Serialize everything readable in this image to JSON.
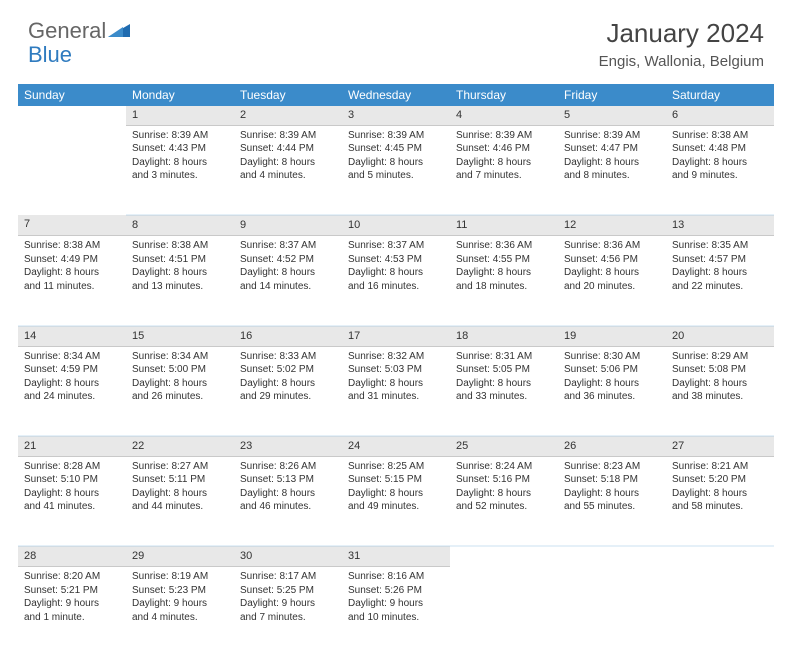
{
  "brand": {
    "part1": "General",
    "part2": "Blue"
  },
  "title": {
    "month": "January 2024",
    "location": "Engis, Wallonia, Belgium"
  },
  "colors": {
    "header_bg": "#3b8bca",
    "header_text": "#ffffff",
    "daynum_bg": "#e8e8e8",
    "text": "#333333",
    "logo_accent": "#2f7bbf"
  },
  "weekdays": [
    "Sunday",
    "Monday",
    "Tuesday",
    "Wednesday",
    "Thursday",
    "Friday",
    "Saturday"
  ],
  "weeks": [
    {
      "nums": [
        "",
        "1",
        "2",
        "3",
        "4",
        "5",
        "6"
      ],
      "cells": [
        null,
        {
          "sr": "Sunrise: 8:39 AM",
          "ss": "Sunset: 4:43 PM",
          "d1": "Daylight: 8 hours",
          "d2": "and 3 minutes."
        },
        {
          "sr": "Sunrise: 8:39 AM",
          "ss": "Sunset: 4:44 PM",
          "d1": "Daylight: 8 hours",
          "d2": "and 4 minutes."
        },
        {
          "sr": "Sunrise: 8:39 AM",
          "ss": "Sunset: 4:45 PM",
          "d1": "Daylight: 8 hours",
          "d2": "and 5 minutes."
        },
        {
          "sr": "Sunrise: 8:39 AM",
          "ss": "Sunset: 4:46 PM",
          "d1": "Daylight: 8 hours",
          "d2": "and 7 minutes."
        },
        {
          "sr": "Sunrise: 8:39 AM",
          "ss": "Sunset: 4:47 PM",
          "d1": "Daylight: 8 hours",
          "d2": "and 8 minutes."
        },
        {
          "sr": "Sunrise: 8:38 AM",
          "ss": "Sunset: 4:48 PM",
          "d1": "Daylight: 8 hours",
          "d2": "and 9 minutes."
        }
      ]
    },
    {
      "nums": [
        "7",
        "8",
        "9",
        "10",
        "11",
        "12",
        "13"
      ],
      "cells": [
        {
          "sr": "Sunrise: 8:38 AM",
          "ss": "Sunset: 4:49 PM",
          "d1": "Daylight: 8 hours",
          "d2": "and 11 minutes."
        },
        {
          "sr": "Sunrise: 8:38 AM",
          "ss": "Sunset: 4:51 PM",
          "d1": "Daylight: 8 hours",
          "d2": "and 13 minutes."
        },
        {
          "sr": "Sunrise: 8:37 AM",
          "ss": "Sunset: 4:52 PM",
          "d1": "Daylight: 8 hours",
          "d2": "and 14 minutes."
        },
        {
          "sr": "Sunrise: 8:37 AM",
          "ss": "Sunset: 4:53 PM",
          "d1": "Daylight: 8 hours",
          "d2": "and 16 minutes."
        },
        {
          "sr": "Sunrise: 8:36 AM",
          "ss": "Sunset: 4:55 PM",
          "d1": "Daylight: 8 hours",
          "d2": "and 18 minutes."
        },
        {
          "sr": "Sunrise: 8:36 AM",
          "ss": "Sunset: 4:56 PM",
          "d1": "Daylight: 8 hours",
          "d2": "and 20 minutes."
        },
        {
          "sr": "Sunrise: 8:35 AM",
          "ss": "Sunset: 4:57 PM",
          "d1": "Daylight: 8 hours",
          "d2": "and 22 minutes."
        }
      ]
    },
    {
      "nums": [
        "14",
        "15",
        "16",
        "17",
        "18",
        "19",
        "20"
      ],
      "cells": [
        {
          "sr": "Sunrise: 8:34 AM",
          "ss": "Sunset: 4:59 PM",
          "d1": "Daylight: 8 hours",
          "d2": "and 24 minutes."
        },
        {
          "sr": "Sunrise: 8:34 AM",
          "ss": "Sunset: 5:00 PM",
          "d1": "Daylight: 8 hours",
          "d2": "and 26 minutes."
        },
        {
          "sr": "Sunrise: 8:33 AM",
          "ss": "Sunset: 5:02 PM",
          "d1": "Daylight: 8 hours",
          "d2": "and 29 minutes."
        },
        {
          "sr": "Sunrise: 8:32 AM",
          "ss": "Sunset: 5:03 PM",
          "d1": "Daylight: 8 hours",
          "d2": "and 31 minutes."
        },
        {
          "sr": "Sunrise: 8:31 AM",
          "ss": "Sunset: 5:05 PM",
          "d1": "Daylight: 8 hours",
          "d2": "and 33 minutes."
        },
        {
          "sr": "Sunrise: 8:30 AM",
          "ss": "Sunset: 5:06 PM",
          "d1": "Daylight: 8 hours",
          "d2": "and 36 minutes."
        },
        {
          "sr": "Sunrise: 8:29 AM",
          "ss": "Sunset: 5:08 PM",
          "d1": "Daylight: 8 hours",
          "d2": "and 38 minutes."
        }
      ]
    },
    {
      "nums": [
        "21",
        "22",
        "23",
        "24",
        "25",
        "26",
        "27"
      ],
      "cells": [
        {
          "sr": "Sunrise: 8:28 AM",
          "ss": "Sunset: 5:10 PM",
          "d1": "Daylight: 8 hours",
          "d2": "and 41 minutes."
        },
        {
          "sr": "Sunrise: 8:27 AM",
          "ss": "Sunset: 5:11 PM",
          "d1": "Daylight: 8 hours",
          "d2": "and 44 minutes."
        },
        {
          "sr": "Sunrise: 8:26 AM",
          "ss": "Sunset: 5:13 PM",
          "d1": "Daylight: 8 hours",
          "d2": "and 46 minutes."
        },
        {
          "sr": "Sunrise: 8:25 AM",
          "ss": "Sunset: 5:15 PM",
          "d1": "Daylight: 8 hours",
          "d2": "and 49 minutes."
        },
        {
          "sr": "Sunrise: 8:24 AM",
          "ss": "Sunset: 5:16 PM",
          "d1": "Daylight: 8 hours",
          "d2": "and 52 minutes."
        },
        {
          "sr": "Sunrise: 8:23 AM",
          "ss": "Sunset: 5:18 PM",
          "d1": "Daylight: 8 hours",
          "d2": "and 55 minutes."
        },
        {
          "sr": "Sunrise: 8:21 AM",
          "ss": "Sunset: 5:20 PM",
          "d1": "Daylight: 8 hours",
          "d2": "and 58 minutes."
        }
      ]
    },
    {
      "nums": [
        "28",
        "29",
        "30",
        "31",
        "",
        "",
        ""
      ],
      "cells": [
        {
          "sr": "Sunrise: 8:20 AM",
          "ss": "Sunset: 5:21 PM",
          "d1": "Daylight: 9 hours",
          "d2": "and 1 minute."
        },
        {
          "sr": "Sunrise: 8:19 AM",
          "ss": "Sunset: 5:23 PM",
          "d1": "Daylight: 9 hours",
          "d2": "and 4 minutes."
        },
        {
          "sr": "Sunrise: 8:17 AM",
          "ss": "Sunset: 5:25 PM",
          "d1": "Daylight: 9 hours",
          "d2": "and 7 minutes."
        },
        {
          "sr": "Sunrise: 8:16 AM",
          "ss": "Sunset: 5:26 PM",
          "d1": "Daylight: 9 hours",
          "d2": "and 10 minutes."
        },
        null,
        null,
        null
      ]
    }
  ]
}
